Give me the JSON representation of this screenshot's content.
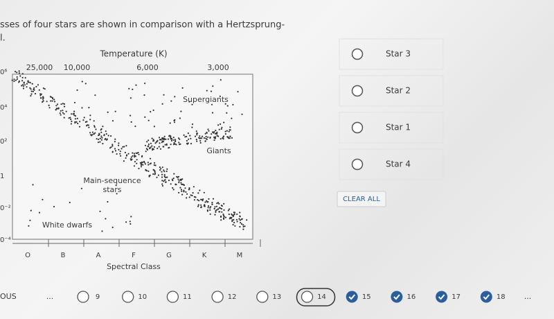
{
  "question": {
    "lines": [
      "sses of four stars are shown in comparison with a Hertzsprung-",
      "l."
    ]
  },
  "diagram": {
    "x_title": "Temperature (K)",
    "temperature_labels": [
      "25,000",
      "10,000",
      "6,000",
      "3,000"
    ],
    "luminosity_labels": [
      "0⁶",
      "0⁴",
      "0²",
      "1",
      "0⁻²",
      "0⁻⁴"
    ],
    "regions": {
      "supergiants": "Supergiants",
      "giants": "Giants",
      "main_sequence": [
        "Main-sequence",
        "stars"
      ],
      "white_dwarfs": "White dwarfs"
    },
    "spectral_classes": [
      "O",
      "B",
      "A",
      "F",
      "G",
      "K",
      "M"
    ],
    "spectral_title": "Spectral Class"
  },
  "options": [
    "Star 3",
    "Star 2",
    "Star 1",
    "Star 4"
  ],
  "clear_all": "CLEAR ALL",
  "nav": {
    "previous": "OUS",
    "ellipsis_left": "...",
    "ellipsis_right": "...",
    "pages": [
      {
        "label": "9",
        "state": "open"
      },
      {
        "label": "10",
        "state": "open"
      },
      {
        "label": "11",
        "state": "open"
      },
      {
        "label": "12",
        "state": "open"
      },
      {
        "label": "13",
        "state": "open"
      },
      {
        "label": "14",
        "state": "current"
      },
      {
        "label": "15",
        "state": "done"
      },
      {
        "label": "16",
        "state": "done"
      },
      {
        "label": "17",
        "state": "done"
      },
      {
        "label": "18",
        "state": "done"
      }
    ]
  }
}
